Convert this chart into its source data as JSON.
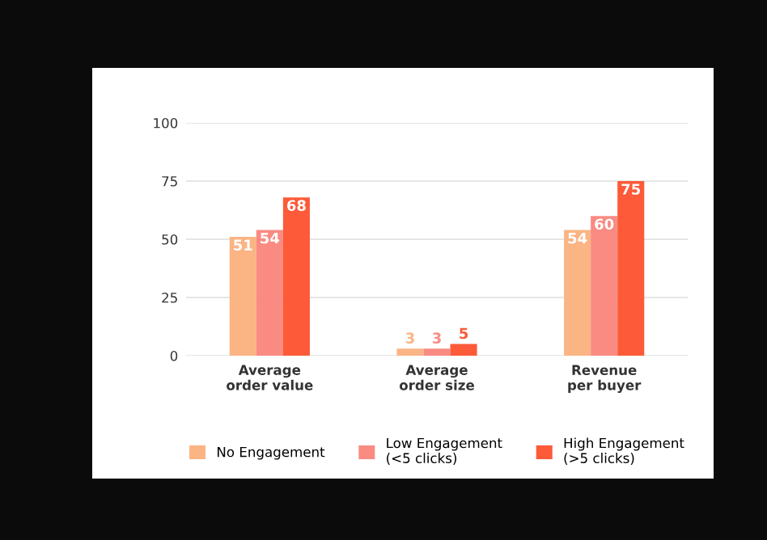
{
  "chart_data": {
    "type": "bar",
    "categories": [
      "Average\norder value",
      "Average\norder size",
      "Revenue\nper buyer"
    ],
    "series": [
      {
        "name": "No Engagement",
        "color": "#fbb484",
        "values": [
          51,
          3,
          54
        ]
      },
      {
        "name": "Low Engagement\n(<5 clicks)",
        "color": "#f98b82",
        "values": [
          54,
          3,
          60
        ]
      },
      {
        "name": "High Engagement\n(>5 clicks)",
        "color": "#fc5a38",
        "values": [
          68,
          5,
          75
        ]
      }
    ],
    "data_labels": true,
    "ylim": [
      0,
      100
    ],
    "yticks": [
      0,
      25,
      50,
      75,
      100
    ],
    "grid": "y",
    "legend": "bottom"
  }
}
